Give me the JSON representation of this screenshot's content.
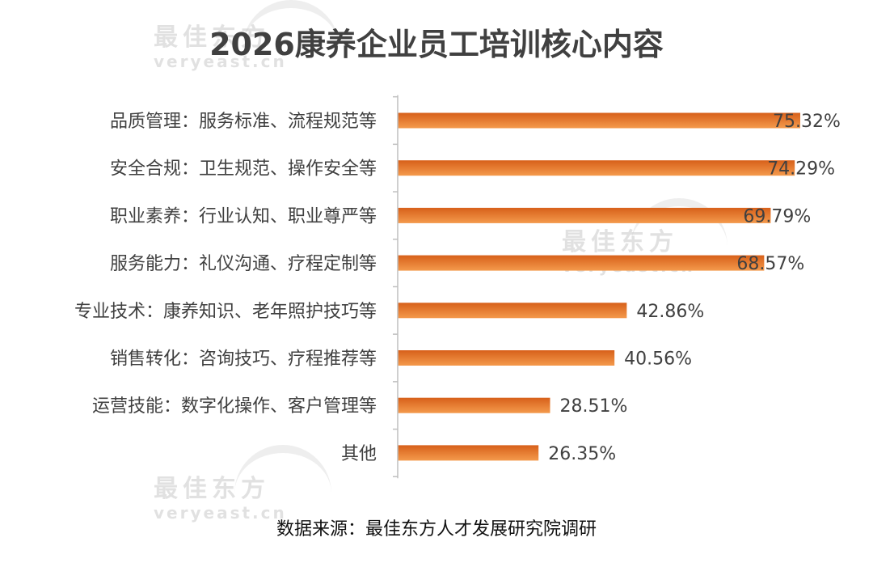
{
  "watermark": {
    "brand": "最佳东方",
    "domain": "veryeast.cn"
  },
  "chart_data": {
    "type": "bar",
    "orientation": "horizontal",
    "title": "2026康养企业员工培训核心内容",
    "source": "数据来源：最佳东方人才发展研究院调研",
    "categories": [
      "品质管理：服务标准、流程规范等",
      "安全合规：卫生规范、操作安全等",
      "职业素养：行业认知、职业尊严等",
      "服务能力：礼仪沟通、疗程定制等",
      "专业技术：康养知识、老年照护技巧等",
      "销售转化：咨询技巧、疗程推荐等",
      "运营技能：数字化操作、客户管理等",
      "其他"
    ],
    "values": [
      75.32,
      74.29,
      69.79,
      68.57,
      42.86,
      40.56,
      28.51,
      26.35
    ],
    "value_labels": [
      "75.32%",
      "74.29%",
      "69.79%",
      "68.57%",
      "42.86%",
      "40.56%",
      "28.51%",
      "26.35%"
    ],
    "xlim": [
      0,
      75.32
    ],
    "grid": false,
    "legend": "none",
    "colors": {
      "bar_dark": "#d7601a",
      "bar_light": "#f49a4c",
      "axis": "#bfbfbf",
      "label": "#404040"
    }
  }
}
